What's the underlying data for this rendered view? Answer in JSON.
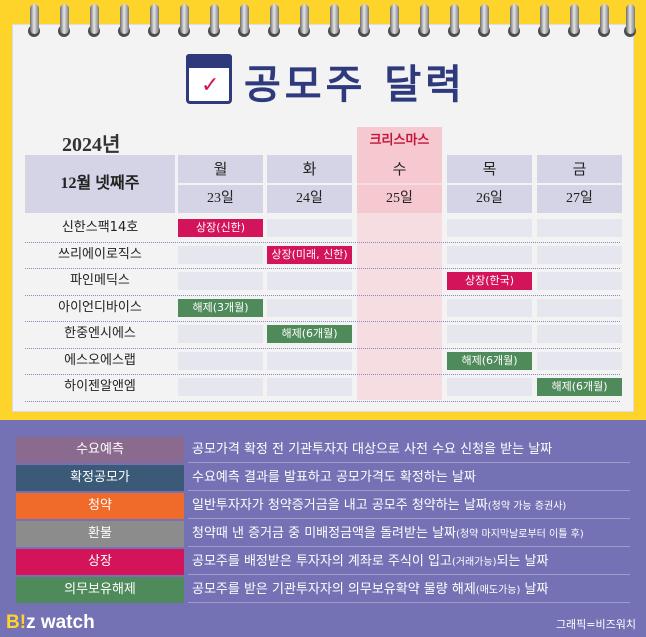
{
  "title": "공모주 달력",
  "year": "2024년",
  "week_label": "12월 넷째주",
  "holiday_label": "크리스마스",
  "days": [
    {
      "day": "월",
      "date": "23일"
    },
    {
      "day": "화",
      "date": "24일"
    },
    {
      "day": "수",
      "date": "25일"
    },
    {
      "day": "목",
      "date": "26일"
    },
    {
      "day": "금",
      "date": "27일"
    }
  ],
  "companies": [
    "신한스팩14호",
    "쓰리에이로직스",
    "파인메딕스",
    "아이언디바이스",
    "한중엔시에스",
    "에스오에스랩",
    "하이젠알앤엠"
  ],
  "events": [
    {
      "company_index": 0,
      "day_index": 0,
      "type": "listing",
      "label": "상장(신한)"
    },
    {
      "company_index": 1,
      "day_index": 1,
      "type": "listing",
      "label": "상장(미래, 신한)"
    },
    {
      "company_index": 2,
      "day_index": 3,
      "type": "listing",
      "label": "상장(한국)"
    },
    {
      "company_index": 3,
      "day_index": 0,
      "type": "release",
      "label": "해제(3개월)"
    },
    {
      "company_index": 4,
      "day_index": 1,
      "type": "release",
      "label": "해제(6개월)"
    },
    {
      "company_index": 5,
      "day_index": 3,
      "type": "release",
      "label": "해제(6개월)"
    },
    {
      "company_index": 6,
      "day_index": 4,
      "type": "release",
      "label": "해제(6개월)"
    }
  ],
  "legend": [
    {
      "term": "수요예측",
      "color": "#8a6a8e",
      "desc": "공모가격 확정 전 기관투자자 대상으로 사전 수요 신청을 받는 날짜",
      "note": ""
    },
    {
      "term": "확정공모가",
      "color": "#3a5a78",
      "desc": "수요예측 결과를 발표하고 공모가격도 확정하는 날짜",
      "note": ""
    },
    {
      "term": "청약",
      "color": "#f06a2a",
      "desc": "일반투자자가 청약증거금을 내고 공모주 청약하는 날짜",
      "note": "(청약 가능 증권사)"
    },
    {
      "term": "환불",
      "color": "#8c8c8c",
      "desc": "청약때 낸 증거금 중 미배정금액을 돌려받는 날짜",
      "note": "(청약 마지막날로부터 이틀 후)"
    },
    {
      "term": "상장",
      "color": "#d4145a",
      "desc": "공모주를 배정받은 투자자의 계좌로 주식이 입고",
      "desc2": "되는 날짜",
      "note": "(거래가능)"
    },
    {
      "term": "의무보유해제",
      "color": "#4f8a5a",
      "desc": "공모주를 받은 기관투자자의 의무보유확약 물량 해제",
      "desc2": " 날짜",
      "note": "(매도가능)"
    }
  ],
  "brand_prefix": "B",
  "brand_accent": "!",
  "brand_suffix": "z watch",
  "credit": "그래픽=비즈워치"
}
